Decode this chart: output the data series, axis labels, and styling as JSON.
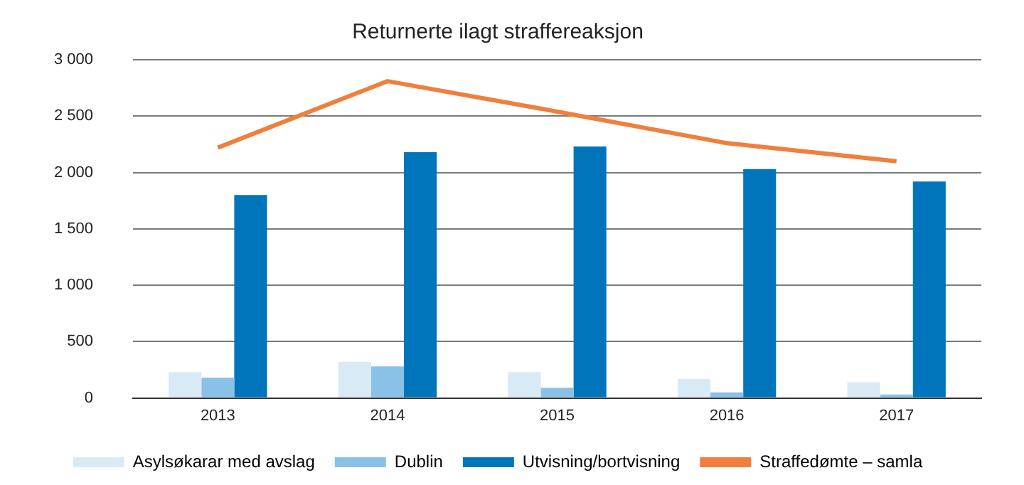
{
  "chart_data": {
    "type": "bar",
    "title": "Returnerte ilagt straffereaksjon",
    "categories": [
      "2013",
      "2014",
      "2015",
      "2016",
      "2017"
    ],
    "series": [
      {
        "name": "Asylsøkarar med avslag",
        "color": "#d9eaf7",
        "values": [
          230,
          320,
          230,
          170,
          140
        ]
      },
      {
        "name": "Dublin",
        "color": "#8ac1e6",
        "values": [
          180,
          280,
          90,
          50,
          30
        ]
      },
      {
        "name": "Utvisning/bortvisning",
        "color": "#0075bc",
        "values": [
          1800,
          2180,
          2230,
          2030,
          1920
        ]
      },
      {
        "name": "Straffedømte – samla",
        "color": "#f07f3c",
        "type": "line",
        "values": [
          2220,
          2810,
          2540,
          2260,
          2100
        ]
      }
    ],
    "ylim": [
      0,
      3000
    ],
    "yticks": [
      0,
      500,
      {
        "value": 1000,
        "label": "1 000"
      },
      {
        "value": 1500,
        "label": "1 500"
      },
      {
        "value": 2000,
        "label": "2 000"
      },
      {
        "value": 2500,
        "label": "2 500"
      },
      {
        "value": 3000,
        "label": "3 000"
      }
    ],
    "grid": "y",
    "legend": "bottom",
    "marker": "none"
  }
}
